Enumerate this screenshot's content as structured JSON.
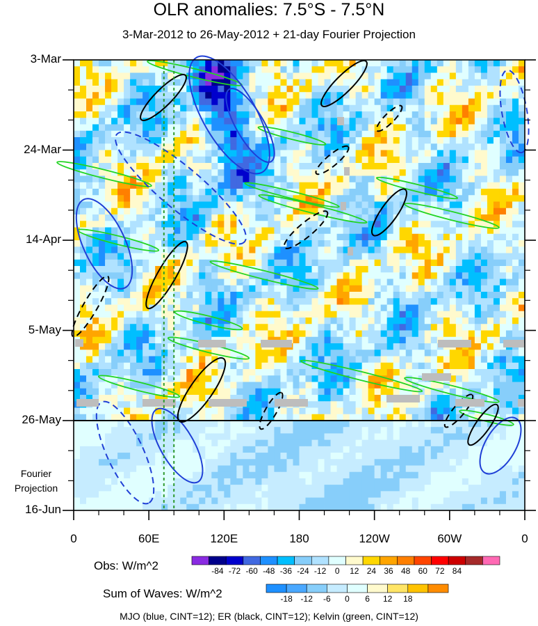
{
  "chart_data": {
    "type": "heatmap",
    "title": "OLR anomalies: 7.5°S - 7.5°N",
    "subtitle": "3-Mar-2012 to 26-May-2012 + 21-day Fourier Projection",
    "x_axis": {
      "ticks": [
        "0",
        "60E",
        "120E",
        "180",
        "120W",
        "60W",
        "0"
      ],
      "range_deg_east": [
        0,
        360
      ]
    },
    "y_axis": {
      "ticks": [
        "3-Mar",
        "24-Mar",
        "14-Apr",
        "5-May",
        "26-May",
        "16-Jun"
      ],
      "range": [
        "3-Mar-2012",
        "16-Jun-2012"
      ],
      "direction": "time increases downward"
    },
    "projection_label": "Fourier\nProjection",
    "projection_start": "26-May",
    "obs_colorbar": {
      "label": "Obs: W/m^2",
      "ticks": [
        "-84",
        "-72",
        "-60",
        "-48",
        "-36",
        "-24",
        "-12",
        "0",
        "12",
        "24",
        "36",
        "48",
        "60",
        "72",
        "84"
      ],
      "colors": [
        "#8a2be2",
        "#00008b",
        "#0000cd",
        "#4169e1",
        "#1e90ff",
        "#00bfff",
        "#87cefa",
        "#b0e2ff",
        "#e0ffff",
        "#fffacd",
        "#ffd700",
        "#ffa500",
        "#ff7f00",
        "#ff4500",
        "#ff0000",
        "#cd0000",
        "#a52a2a",
        "#ff69b4"
      ]
    },
    "waves_colorbar": {
      "label": "Sum of Waves: W/m^2",
      "ticks": [
        "-18",
        "-12",
        "-6",
        "0",
        "6",
        "12",
        "18"
      ],
      "colors": [
        "#1e90ff",
        "#4aa8ff",
        "#87cefa",
        "#c6ecff",
        "#e0ffff",
        "#fffacd",
        "#ffe566",
        "#ffc300",
        "#ff8c00"
      ]
    },
    "contour_legend": "MJO (blue, CINT=12); ER (black, CINT=12); Kelvin (green, CINT=12)",
    "series": [
      {
        "name": "MJO",
        "color": "#1f3fd6"
      },
      {
        "name": "ER",
        "color": "#000000"
      },
      {
        "name": "Kelvin",
        "color": "#22d422"
      }
    ],
    "vertical_guides_lon": [
      72,
      80
    ]
  }
}
